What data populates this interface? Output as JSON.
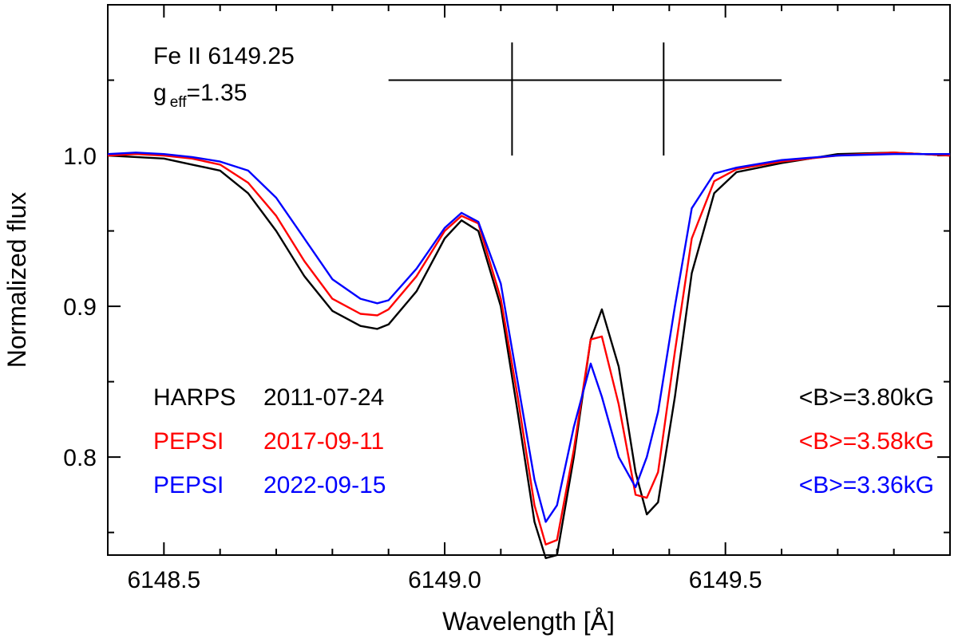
{
  "chart_data": {
    "type": "line",
    "xlabel": "Wavelength [Å]",
    "ylabel": "Normalized flux",
    "xlim": [
      6148.4,
      6149.9
    ],
    "ylim": [
      0.735,
      1.1
    ],
    "x_ticks": [
      6148.5,
      6149.0,
      6149.5
    ],
    "x_tick_labels": [
      "6148.5",
      "6149.0",
      "6149.5"
    ],
    "y_ticks": [
      0.8,
      0.9,
      1.0
    ],
    "y_tick_labels": [
      "0.8",
      "0.9",
      "1.0"
    ],
    "grid": false,
    "line_label": {
      "name": "Fe II 6149.25",
      "geff_prefix": "g",
      "geff_sub": "eff",
      "geff_value": "=1.35"
    },
    "zeeman_pattern": {
      "x_from": 6148.9,
      "x_to": 6149.6,
      "level": 1.05,
      "components": [
        6149.12,
        6149.39
      ],
      "top": 1.075,
      "bottom": 1.0
    },
    "series": [
      {
        "name": "HARPS 2011-07-24",
        "instrument": "HARPS",
        "date": "2011-07-24",
        "field_label": "<B>=3.80kG",
        "color": "#000000",
        "x": [
          6148.4,
          6148.45,
          6148.5,
          6148.55,
          6148.6,
          6148.65,
          6148.7,
          6148.75,
          6148.8,
          6148.85,
          6148.88,
          6148.9,
          6148.95,
          6149.0,
          6149.03,
          6149.06,
          6149.1,
          6149.13,
          6149.16,
          6149.18,
          6149.2,
          6149.23,
          6149.26,
          6149.28,
          6149.31,
          6149.34,
          6149.36,
          6149.38,
          6149.41,
          6149.44,
          6149.48,
          6149.52,
          6149.6,
          6149.7,
          6149.8,
          6149.9
        ],
        "y": [
          1.0,
          0.999,
          0.998,
          0.994,
          0.99,
          0.975,
          0.95,
          0.92,
          0.897,
          0.887,
          0.885,
          0.888,
          0.91,
          0.945,
          0.957,
          0.95,
          0.9,
          0.83,
          0.757,
          0.733,
          0.735,
          0.8,
          0.878,
          0.898,
          0.86,
          0.79,
          0.762,
          0.77,
          0.84,
          0.922,
          0.975,
          0.989,
          0.995,
          1.001,
          1.002,
          1.0
        ]
      },
      {
        "name": "PEPSI 2017-09-11",
        "instrument": "PEPSI",
        "date": "2017-09-11",
        "field_label": "<B>=3.58kG",
        "color": "#ff0000",
        "x": [
          6148.4,
          6148.45,
          6148.5,
          6148.55,
          6148.6,
          6148.65,
          6148.7,
          6148.75,
          6148.8,
          6148.85,
          6148.88,
          6148.9,
          6148.95,
          6149.0,
          6149.03,
          6149.06,
          6149.1,
          6149.13,
          6149.16,
          6149.18,
          6149.2,
          6149.23,
          6149.26,
          6149.28,
          6149.31,
          6149.34,
          6149.36,
          6149.38,
          6149.41,
          6149.44,
          6149.48,
          6149.52,
          6149.6,
          6149.7,
          6149.8,
          6149.9
        ],
        "y": [
          1.0,
          1.001,
          1.0,
          0.998,
          0.994,
          0.982,
          0.96,
          0.93,
          0.905,
          0.895,
          0.894,
          0.898,
          0.92,
          0.95,
          0.96,
          0.955,
          0.905,
          0.84,
          0.768,
          0.742,
          0.745,
          0.805,
          0.878,
          0.88,
          0.835,
          0.775,
          0.773,
          0.79,
          0.87,
          0.945,
          0.983,
          0.991,
          0.996,
          1.0,
          1.002,
          1.0
        ]
      },
      {
        "name": "PEPSI 2022-09-15",
        "instrument": "PEPSI",
        "date": "2022-09-15",
        "field_label": "<B>=3.36kG",
        "color": "#0000ff",
        "x": [
          6148.4,
          6148.45,
          6148.5,
          6148.55,
          6148.6,
          6148.65,
          6148.7,
          6148.75,
          6148.8,
          6148.85,
          6148.88,
          6148.9,
          6148.95,
          6149.0,
          6149.03,
          6149.06,
          6149.1,
          6149.13,
          6149.16,
          6149.18,
          6149.2,
          6149.23,
          6149.26,
          6149.28,
          6149.31,
          6149.34,
          6149.36,
          6149.38,
          6149.41,
          6149.44,
          6149.48,
          6149.52,
          6149.6,
          6149.7,
          6149.8,
          6149.9
        ],
        "y": [
          1.001,
          1.002,
          1.001,
          0.999,
          0.996,
          0.99,
          0.972,
          0.945,
          0.918,
          0.905,
          0.902,
          0.904,
          0.925,
          0.952,
          0.962,
          0.956,
          0.915,
          0.85,
          0.785,
          0.757,
          0.768,
          0.82,
          0.862,
          0.84,
          0.8,
          0.78,
          0.8,
          0.83,
          0.9,
          0.965,
          0.988,
          0.992,
          0.997,
          1.0,
          1.001,
          1.001
        ]
      }
    ]
  }
}
